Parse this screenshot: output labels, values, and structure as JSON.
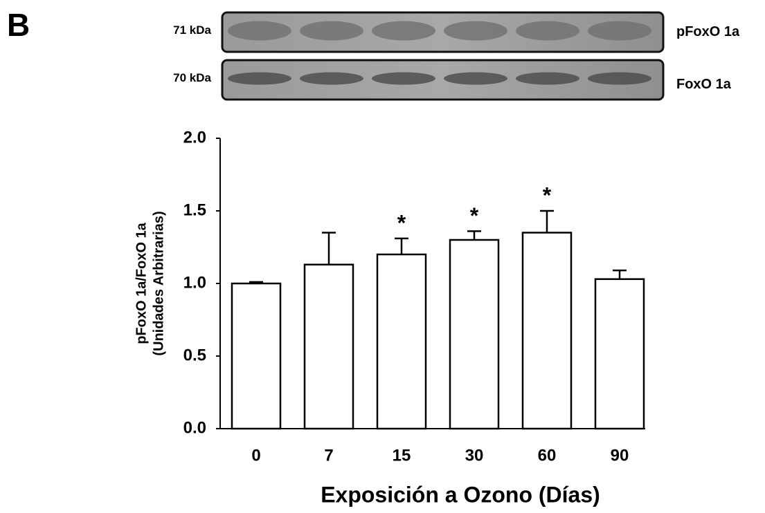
{
  "panel_label": "B",
  "blots": [
    {
      "weight": "71 kDa",
      "protein": "pFoxO 1a"
    },
    {
      "weight": "70 kDa",
      "protein": "FoxO 1a"
    }
  ],
  "chart_data": {
    "type": "bar",
    "categories": [
      "0",
      "7",
      "15",
      "30",
      "60",
      "90"
    ],
    "values": [
      1.0,
      1.13,
      1.2,
      1.3,
      1.35,
      1.03
    ],
    "errors": [
      0.01,
      0.22,
      0.11,
      0.06,
      0.15,
      0.06
    ],
    "significance": [
      null,
      null,
      "*",
      "*",
      "*",
      null
    ],
    "color": "#ffffff",
    "ylim": [
      0,
      2
    ],
    "yticks": [
      {
        "value": 0,
        "label": "0.0"
      },
      {
        "value": 0.5,
        "label": "0.5"
      },
      {
        "value": 1,
        "label": "1.0"
      },
      {
        "value": 1.5,
        "label": "1.5"
      },
      {
        "value": 2,
        "label": "2.0"
      }
    ],
    "ylabel": [
      "pFoxO 1a/FoxO 1a",
      "(Unidades Arbitrarias)"
    ],
    "xlabel": "Exposición a Ozono (Días)"
  }
}
